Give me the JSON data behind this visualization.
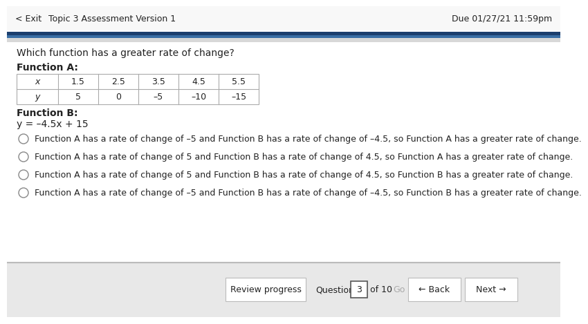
{
  "header_text_left1": "< Exit",
  "header_text_left2": "Topic 3 Assessment Version 1",
  "header_text_right": "Due 01/27/21 11:59pm",
  "question": "Which function has a greater rate of change?",
  "func_a_label": "Function A:",
  "table_x_header": "x",
  "table_y_header": "y",
  "table_x_values": [
    "1.5",
    "2.5",
    "3.5",
    "4.5",
    "5.5"
  ],
  "table_y_values": [
    "5",
    "0",
    "–5",
    "–10",
    "–15"
  ],
  "func_b_label": "Function B:",
  "func_b_eq": "y = –4.5x + 15",
  "options": [
    "Function A has a rate of change of –5 and Function B has a rate of change of –4.5, so Function A has a greater rate of change.",
    "Function A has a rate of change of 5 and Function B has a rate of change of 4.5, so Function A has a greater rate of change.",
    "Function A has a rate of change of 5 and Function B has a rate of change of 4.5, so Function B has a greater rate of change.",
    "Function A has a rate of change of –5 and Function B has a rate of change of –4.5, so Function B has a greater rate of change."
  ],
  "review_progress_text": "Review progress",
  "question_label": "Question",
  "question_num": "3",
  "of_text": "of 10",
  "go_text": "Go",
  "back_text": "← Back",
  "next_text": "Next →",
  "header_bg": "#f8f8f8",
  "content_bg": "#ffffff",
  "footer_bg": "#e8e8e8",
  "dark_blue": "#1c3f6e",
  "mid_blue": "#3a6ea5",
  "border_color": "#cccccc",
  "table_border": "#aaaaaa",
  "text_dark": "#222222",
  "text_medium": "#444444",
  "radio_color": "#888888"
}
